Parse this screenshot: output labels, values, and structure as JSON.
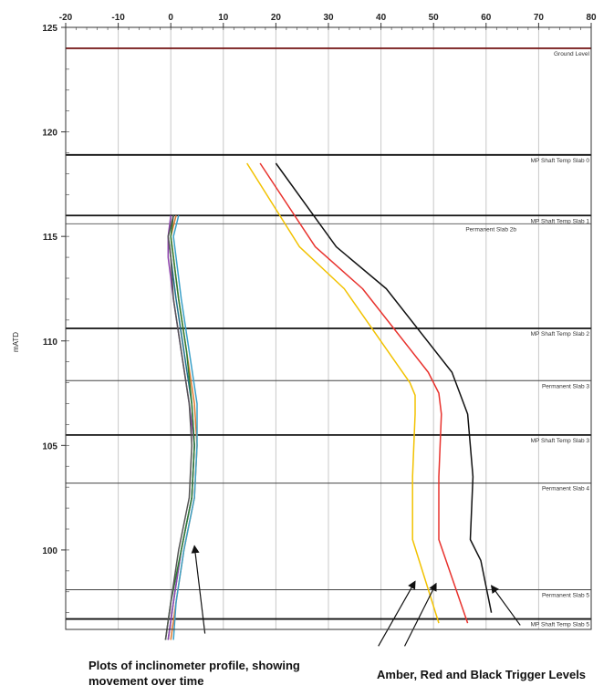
{
  "chart_data": {
    "type": "line",
    "xlim": [
      -20,
      80
    ],
    "ylim": [
      96.2,
      125
    ],
    "x_ticks": [
      -20,
      -10,
      0,
      10,
      20,
      30,
      40,
      50,
      60,
      70,
      80
    ],
    "y_ticks": [
      100,
      105,
      110,
      115,
      120,
      125
    ],
    "ylabel": "mATD",
    "grid": true,
    "levels": [
      {
        "label": "Ground Level",
        "y": 124.0,
        "color": "#7a1f1f",
        "heavy": true
      },
      {
        "label": "MP Shaft Temp Slab 0",
        "y": 118.9,
        "color": "#111111",
        "heavy": true
      },
      {
        "label": "MP Shaft Temp Slab 1",
        "y": 116.0,
        "color": "#111111",
        "heavy": true
      },
      {
        "label": "Permanent Slab 2b",
        "y": 115.6,
        "color": "#666666",
        "heavy": false
      },
      {
        "label": "MP Shaft Temp Slab 2",
        "y": 110.6,
        "color": "#111111",
        "heavy": true
      },
      {
        "label": "Permanent Slab 3",
        "y": 108.1,
        "color": "#444444",
        "heavy": false
      },
      {
        "label": "MP Shaft Temp Slab 3",
        "y": 105.5,
        "color": "#111111",
        "heavy": true
      },
      {
        "label": "Permanent Slab 4",
        "y": 103.2,
        "color": "#444444",
        "heavy": false
      },
      {
        "label": "Permanent Slab 5",
        "y": 98.1,
        "color": "#444444",
        "heavy": false
      },
      {
        "label": "MP Shaft Temp Slab 5",
        "y": 96.7,
        "color": "#111111",
        "heavy": true
      }
    ],
    "series": [
      {
        "color": "#f2c200",
        "x": [
          14.5,
          24.5,
          33.0,
          45.5,
          46.5,
          46.5,
          46.0,
          46.0,
          51.0
        ],
        "y": [
          118.5,
          114.5,
          112.5,
          108.0,
          107.4,
          106.5,
          103.5,
          100.5,
          96.5
        ]
      },
      {
        "color": "#e8322d",
        "x": [
          17.0,
          27.5,
          36.5,
          49.0,
          51.0,
          51.5,
          51.0,
          51.0,
          56.5
        ],
        "y": [
          118.5,
          114.5,
          112.5,
          108.5,
          107.5,
          106.5,
          103.5,
          100.5,
          96.5
        ]
      },
      {
        "color": "#111111",
        "x": [
          20.0,
          31.5,
          41.0,
          53.5,
          56.5,
          57.5,
          57.0,
          59.0,
          61.0
        ],
        "y": [
          118.5,
          114.5,
          112.5,
          108.5,
          106.5,
          103.5,
          100.5,
          99.5,
          97.0
        ]
      },
      {
        "color": "#1f6f8b",
        "x": [
          0.5,
          -0.5,
          0.0,
          1.0,
          2.5,
          4.0,
          4.5,
          4.0,
          2.0,
          0.5,
          -0.5
        ],
        "y": [
          116.0,
          115.0,
          114.0,
          112.0,
          109.5,
          107.0,
          105.0,
          102.5,
          100.0,
          97.5,
          95.7
        ]
      },
      {
        "color": "#e07a2f",
        "x": [
          1.0,
          0.0,
          0.5,
          1.5,
          3.0,
          4.5,
          5.0,
          4.5,
          2.5,
          1.0,
          0.0
        ],
        "y": [
          116.0,
          115.0,
          114.0,
          112.0,
          109.5,
          107.0,
          105.0,
          102.5,
          100.0,
          97.5,
          95.7
        ]
      },
      {
        "color": "#8e44ad",
        "x": [
          0.0,
          -0.5,
          -0.5,
          0.5,
          2.0,
          3.5,
          4.5,
          4.0,
          2.0,
          0.5,
          -0.5
        ],
        "y": [
          116.0,
          115.0,
          114.0,
          112.0,
          109.5,
          107.0,
          105.0,
          102.5,
          100.0,
          97.5,
          95.7
        ]
      },
      {
        "color": "#3aa0c8",
        "x": [
          1.5,
          0.5,
          1.0,
          2.0,
          3.5,
          5.0,
          5.0,
          4.5,
          2.5,
          1.0,
          0.5
        ],
        "y": [
          116.0,
          115.0,
          114.0,
          112.0,
          109.5,
          107.0,
          105.0,
          102.5,
          100.0,
          97.5,
          95.7
        ]
      },
      {
        "color": "#2e7d32",
        "x": [
          0.5,
          0.0,
          0.5,
          1.5,
          3.0,
          4.0,
          4.5,
          4.0,
          2.0,
          0.0,
          -1.0
        ],
        "y": [
          116.0,
          115.0,
          114.0,
          112.0,
          109.5,
          107.0,
          105.0,
          102.5,
          100.0,
          97.5,
          95.7
        ]
      },
      {
        "color": "#555555",
        "x": [
          0.5,
          -0.5,
          0.0,
          0.5,
          2.0,
          3.5,
          4.0,
          3.5,
          1.5,
          0.0,
          -1.0
        ],
        "y": [
          116.0,
          115.0,
          114.0,
          112.0,
          109.5,
          107.0,
          105.0,
          102.5,
          100.0,
          97.5,
          95.7
        ]
      }
    ],
    "annotations": [
      {
        "from": [
          6.5,
          96.0
        ],
        "to": [
          4.5,
          100.2
        ]
      },
      {
        "from": [
          39.5,
          95.4
        ],
        "to": [
          46.5,
          98.5
        ]
      },
      {
        "from": [
          44.5,
          95.4
        ],
        "to": [
          50.5,
          98.4
        ]
      },
      {
        "from": [
          66.5,
          96.4
        ],
        "to": [
          61.0,
          98.3
        ]
      }
    ]
  },
  "captions": {
    "left": "Plots of inclinometer profile, showing movement over time",
    "right": "Amber, Red and Black Trigger Levels"
  }
}
